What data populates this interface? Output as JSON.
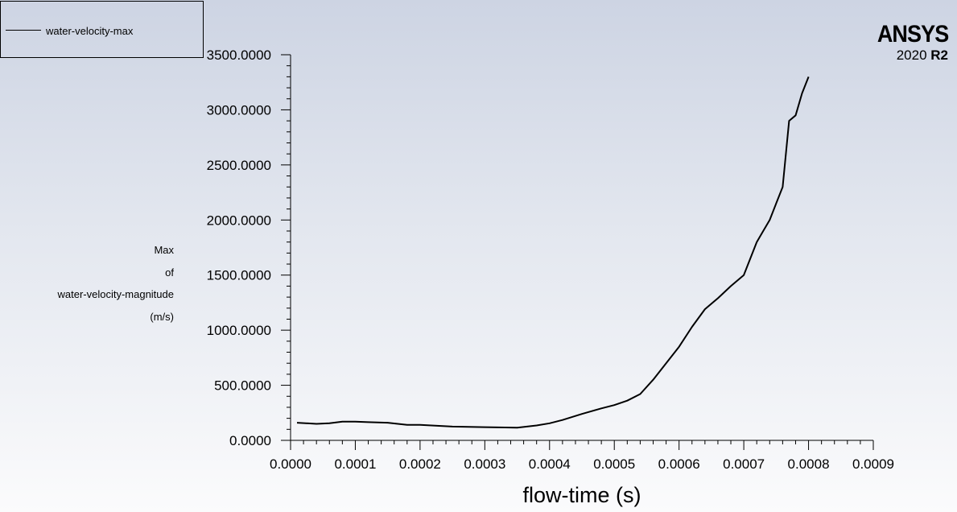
{
  "legend": {
    "label": "water-velocity-max"
  },
  "brand": {
    "name": "ANSYS",
    "version": "2020",
    "release": "R2"
  },
  "chart_data": {
    "type": "line",
    "title": "",
    "xlabel": "flow-time (s)",
    "ylabel_lines": [
      "Max",
      "of",
      "water-velocity-magnitude",
      "(m/s)"
    ],
    "xlim": [
      0,
      0.0009
    ],
    "ylim": [
      0,
      3500
    ],
    "x_ticks": [
      "0.0000",
      "0.0001",
      "0.0002",
      "0.0003",
      "0.0004",
      "0.0005",
      "0.0006",
      "0.0007",
      "0.0008",
      "0.0009"
    ],
    "y_ticks": [
      "0.0000",
      "500.0000",
      "1000.0000",
      "1500.0000",
      "2000.0000",
      "2500.0000",
      "3000.0000",
      "3500.0000"
    ],
    "grid": false,
    "legend_position": "top-left",
    "series": [
      {
        "name": "water-velocity-max",
        "color": "#000000",
        "x": [
          1e-05,
          4e-05,
          6e-05,
          8e-05,
          0.0001,
          0.00012,
          0.00015,
          0.00018,
          0.0002,
          0.00025,
          0.0003,
          0.00035,
          0.00038,
          0.0004,
          0.00042,
          0.00045,
          0.00048,
          0.0005,
          0.00052,
          0.00054,
          0.00056,
          0.00058,
          0.0006,
          0.00062,
          0.00064,
          0.00066,
          0.00068,
          0.0007,
          0.00072,
          0.00073,
          0.00074,
          0.00075,
          0.00076,
          0.00077,
          0.00078,
          0.00079,
          0.0008
        ],
        "y": [
          160,
          150,
          155,
          170,
          170,
          165,
          160,
          140,
          140,
          125,
          120,
          115,
          135,
          155,
          185,
          240,
          290,
          320,
          360,
          420,
          550,
          700,
          850,
          1030,
          1190,
          1290,
          1400,
          1500,
          1800,
          1900,
          2000,
          2150,
          2300,
          2900,
          2950,
          3150,
          3300
        ]
      }
    ]
  }
}
